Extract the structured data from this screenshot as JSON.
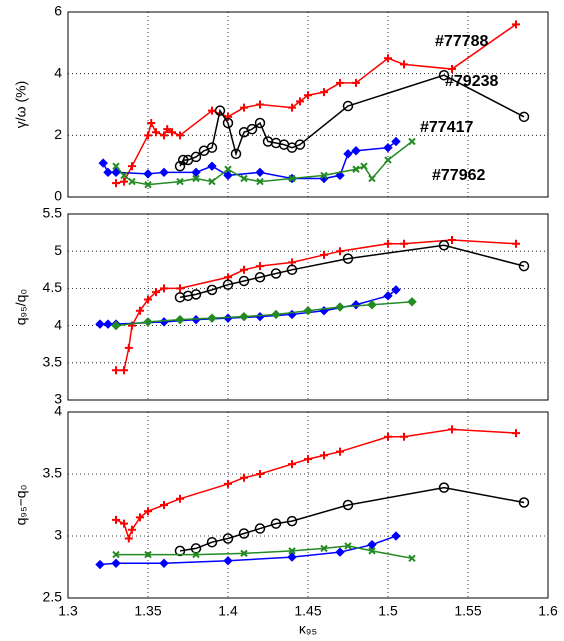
{
  "chart_data": [
    {
      "type": "line",
      "y_label": "γ/ω (%)",
      "xlim": [
        1.3,
        1.6
      ],
      "xticks": [
        1.3,
        1.35,
        1.4,
        1.45,
        1.5,
        1.55,
        1.6
      ],
      "ylim": [
        0,
        6
      ],
      "yticks": [
        0,
        2,
        4,
        6
      ],
      "grid": true,
      "series": [
        {
          "name": "#77788",
          "color": "#ff0000",
          "marker": "plus",
          "x": [
            1.33,
            1.335,
            1.34,
            1.35,
            1.352,
            1.355,
            1.36,
            1.362,
            1.365,
            1.37,
            1.39,
            1.4,
            1.41,
            1.42,
            1.44,
            1.445,
            1.45,
            1.46,
            1.47,
            1.48,
            1.5,
            1.51,
            1.54,
            1.58
          ],
          "values": [
            0.45,
            0.5,
            1.0,
            2.0,
            2.4,
            2.1,
            2.0,
            2.2,
            2.1,
            2.0,
            2.8,
            2.6,
            2.9,
            3.0,
            2.9,
            3.1,
            3.3,
            3.4,
            3.7,
            3.7,
            4.5,
            4.3,
            4.15,
            5.6
          ]
        },
        {
          "name": "#79238",
          "color": "#000000",
          "marker": "circle",
          "x": [
            1.37,
            1.372,
            1.375,
            1.38,
            1.385,
            1.39,
            1.395,
            1.4,
            1.405,
            1.41,
            1.415,
            1.42,
            1.425,
            1.43,
            1.435,
            1.44,
            1.445,
            1.475,
            1.535,
            1.585
          ],
          "values": [
            1.0,
            1.2,
            1.2,
            1.3,
            1.5,
            1.6,
            2.8,
            2.4,
            1.4,
            2.1,
            2.2,
            2.4,
            1.8,
            1.75,
            1.7,
            1.6,
            1.7,
            2.95,
            3.95,
            2.6
          ]
        },
        {
          "name": "#77417",
          "color": "#0000ff",
          "marker": "diamond",
          "x": [
            1.322,
            1.325,
            1.33,
            1.35,
            1.36,
            1.38,
            1.39,
            1.4,
            1.42,
            1.44,
            1.46,
            1.47,
            1.475,
            1.48,
            1.5,
            1.505
          ],
          "values": [
            1.1,
            0.8,
            0.8,
            0.75,
            0.8,
            0.8,
            1.0,
            0.7,
            0.8,
            0.6,
            0.6,
            0.7,
            1.4,
            1.5,
            1.6,
            1.8
          ]
        },
        {
          "name": "#77962",
          "color": "#228b22",
          "marker": "cross",
          "x": [
            1.33,
            1.335,
            1.34,
            1.35,
            1.37,
            1.38,
            1.39,
            1.4,
            1.41,
            1.42,
            1.44,
            1.46,
            1.48,
            1.485,
            1.49,
            1.5,
            1.515
          ],
          "values": [
            1.0,
            0.7,
            0.5,
            0.4,
            0.5,
            0.6,
            0.5,
            0.9,
            0.6,
            0.5,
            0.6,
            0.7,
            0.9,
            1.0,
            0.6,
            1.2,
            1.8
          ]
        }
      ]
    },
    {
      "type": "line",
      "y_label": "q₉₅/q₀",
      "xlim": [
        1.3,
        1.6
      ],
      "xticks": [
        1.3,
        1.35,
        1.4,
        1.45,
        1.5,
        1.55,
        1.6
      ],
      "ylim": [
        3,
        5.5
      ],
      "yticks": [
        3,
        3.5,
        4,
        4.5,
        5,
        5.5
      ],
      "grid": true,
      "series": [
        {
          "color": "#ff0000",
          "marker": "plus",
          "x": [
            1.33,
            1.335,
            1.338,
            1.34,
            1.345,
            1.35,
            1.355,
            1.36,
            1.37,
            1.4,
            1.41,
            1.42,
            1.44,
            1.46,
            1.47,
            1.5,
            1.51,
            1.54,
            1.58
          ],
          "values": [
            3.4,
            3.4,
            3.7,
            4.0,
            4.2,
            4.35,
            4.45,
            4.5,
            4.5,
            4.65,
            4.75,
            4.8,
            4.85,
            4.95,
            5.0,
            5.1,
            5.1,
            5.15,
            5.1
          ]
        },
        {
          "color": "#000000",
          "marker": "circle",
          "x": [
            1.37,
            1.375,
            1.38,
            1.39,
            1.4,
            1.41,
            1.42,
            1.43,
            1.44,
            1.475,
            1.535,
            1.585
          ],
          "values": [
            4.38,
            4.4,
            4.42,
            4.48,
            4.55,
            4.6,
            4.65,
            4.7,
            4.75,
            4.9,
            5.08,
            4.8
          ]
        },
        {
          "color": "#0000ff",
          "marker": "diamond",
          "x": [
            1.32,
            1.325,
            1.33,
            1.36,
            1.38,
            1.4,
            1.42,
            1.44,
            1.46,
            1.48,
            1.5,
            1.505
          ],
          "values": [
            4.02,
            4.02,
            4.02,
            4.05,
            4.08,
            4.1,
            4.12,
            4.15,
            4.2,
            4.28,
            4.4,
            4.48
          ]
        },
        {
          "color": "#228b22",
          "marker": "diamond",
          "x": [
            1.33,
            1.35,
            1.37,
            1.39,
            1.41,
            1.43,
            1.45,
            1.47,
            1.49,
            1.515
          ],
          "values": [
            4.0,
            4.05,
            4.08,
            4.1,
            4.12,
            4.15,
            4.2,
            4.25,
            4.28,
            4.32
          ]
        }
      ]
    },
    {
      "type": "line",
      "x_label": "κ₉₅",
      "y_label": "q₉₅−q₀",
      "xlim": [
        1.3,
        1.6
      ],
      "xticks": [
        1.3,
        1.35,
        1.4,
        1.45,
        1.5,
        1.55,
        1.6
      ],
      "ylim": [
        2.5,
        4
      ],
      "yticks": [
        2.5,
        3,
        3.5,
        4
      ],
      "grid": true,
      "series": [
        {
          "color": "#ff0000",
          "marker": "plus",
          "x": [
            1.33,
            1.335,
            1.338,
            1.34,
            1.345,
            1.35,
            1.36,
            1.37,
            1.4,
            1.41,
            1.42,
            1.44,
            1.45,
            1.46,
            1.47,
            1.5,
            1.51,
            1.54,
            1.58
          ],
          "values": [
            3.13,
            3.1,
            2.98,
            3.05,
            3.15,
            3.2,
            3.25,
            3.3,
            3.42,
            3.47,
            3.5,
            3.58,
            3.62,
            3.65,
            3.68,
            3.8,
            3.8,
            3.86,
            3.83
          ]
        },
        {
          "color": "#000000",
          "marker": "circle",
          "x": [
            1.37,
            1.38,
            1.39,
            1.4,
            1.41,
            1.42,
            1.43,
            1.44,
            1.475,
            1.535,
            1.585
          ],
          "values": [
            2.88,
            2.9,
            2.95,
            2.98,
            3.02,
            3.06,
            3.1,
            3.12,
            3.25,
            3.39,
            3.27
          ]
        },
        {
          "color": "#0000ff",
          "marker": "diamond",
          "x": [
            1.32,
            1.33,
            1.36,
            1.4,
            1.44,
            1.47,
            1.49,
            1.505
          ],
          "values": [
            2.77,
            2.78,
            2.78,
            2.8,
            2.83,
            2.87,
            2.93,
            3.0
          ]
        },
        {
          "color": "#228b22",
          "marker": "cross",
          "x": [
            1.33,
            1.35,
            1.38,
            1.41,
            1.44,
            1.46,
            1.475,
            1.49,
            1.515
          ],
          "values": [
            2.85,
            2.85,
            2.85,
            2.86,
            2.88,
            2.9,
            2.92,
            2.88,
            2.82
          ]
        }
      ]
    }
  ]
}
